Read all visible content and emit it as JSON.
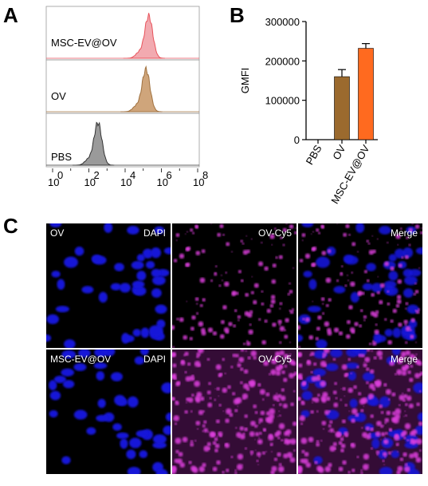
{
  "panels": {
    "a": "A",
    "b": "B",
    "c": "C"
  },
  "flow": {
    "tracks": [
      {
        "name": "MSC-EV@OV",
        "color": "#e8535b",
        "fill": "#f2aab0",
        "peak": 5.3
      },
      {
        "name": "OV",
        "color": "#a0713f",
        "fill": "#cfa57b",
        "peak": 5.15
      },
      {
        "name": "PBS",
        "color": "#333333",
        "fill": "#9a9a9a",
        "peak": 2.5
      }
    ],
    "xticks": [
      {
        "base": "10",
        "exp": "0"
      },
      {
        "base": "10",
        "exp": "2"
      },
      {
        "base": "10",
        "exp": "4"
      },
      {
        "base": "10",
        "exp": "6"
      },
      {
        "base": "10",
        "exp": "8"
      }
    ]
  },
  "chart_data": {
    "type": "bar",
    "ylabel": "GMFI",
    "categories": [
      "PBS",
      "OV",
      "MSC-EV@OV"
    ],
    "values": [
      0,
      160000,
      232000
    ],
    "errors": [
      0,
      18000,
      12000
    ],
    "colors": [
      "#b0b0b0",
      "#9b6a2e",
      "#ff6a1f"
    ],
    "ylim": [
      0,
      300000
    ],
    "yticks": [
      "0",
      "100000",
      "200000",
      "300000"
    ]
  },
  "microscopy": {
    "rows": [
      {
        "label": "OV",
        "cells": [
          "DAPI",
          "OV-Cy5",
          "Merge"
        ]
      },
      {
        "label": "MSC-EV@OV",
        "cells": [
          "DAPI",
          "OV-Cy5",
          "Merge"
        ]
      }
    ]
  }
}
